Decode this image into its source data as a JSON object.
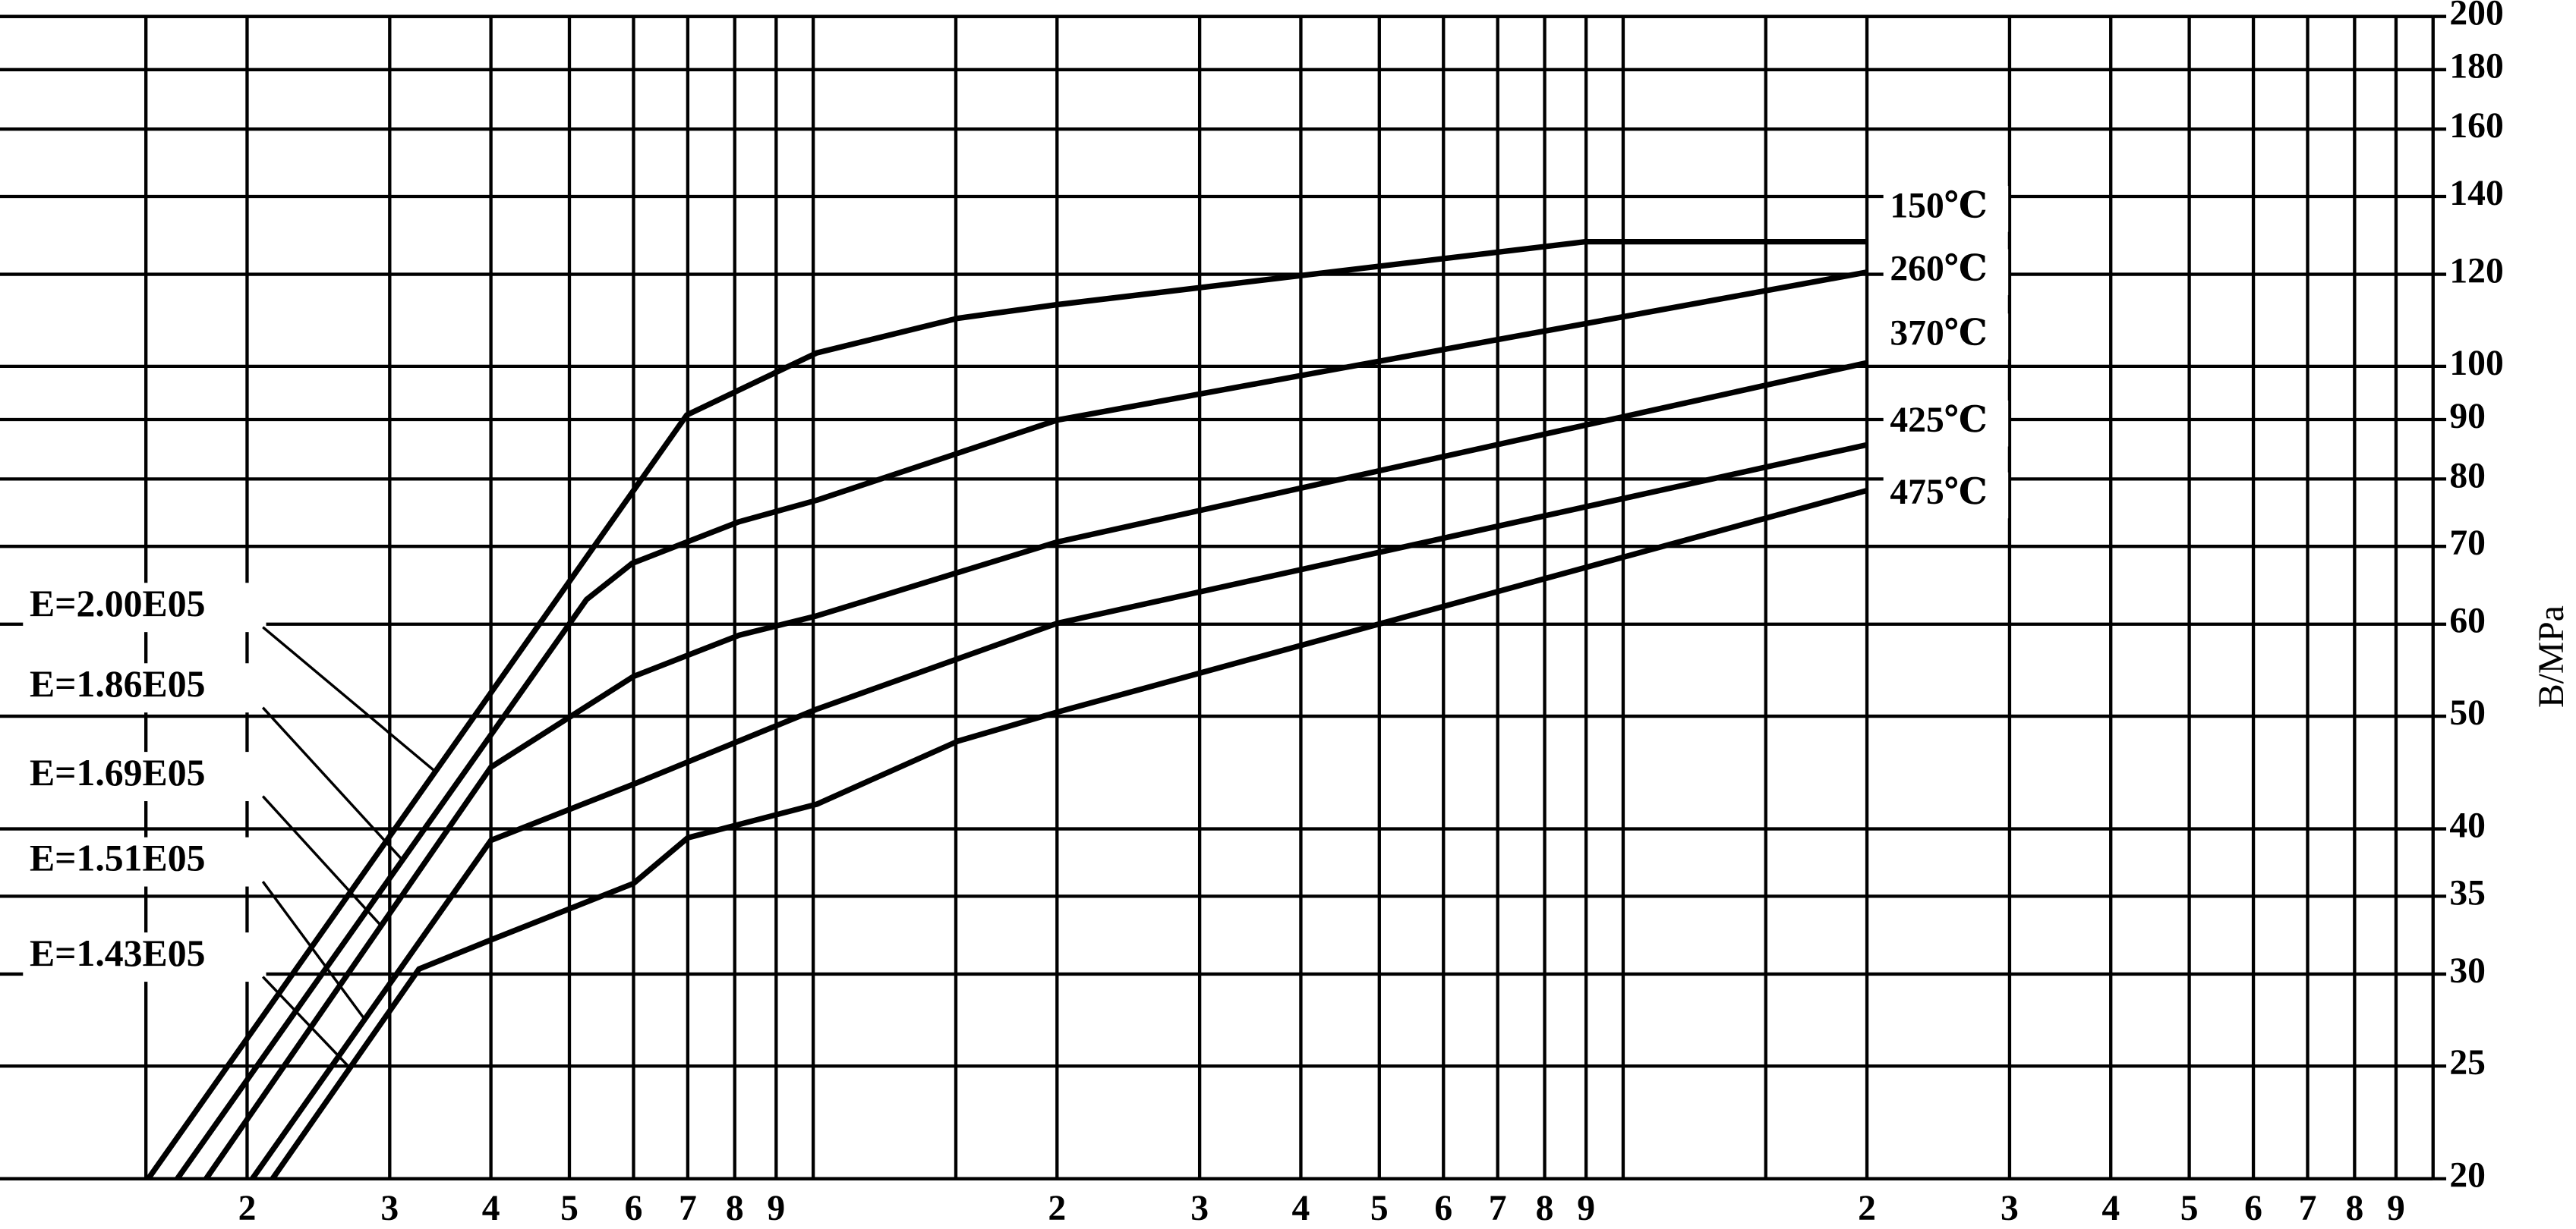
{
  "chart_data": {
    "type": "line",
    "y_label": "B/MPa",
    "xscale": "log",
    "yscale": "log",
    "xlim": [
      1,
      1000
    ],
    "ylim": [
      20,
      200
    ],
    "xticks": [
      2,
      3,
      4,
      5,
      6,
      7,
      8,
      9,
      {
        "value": 20,
        "label": "2"
      },
      {
        "value": 30,
        "label": "3"
      },
      {
        "value": 40,
        "label": "4"
      },
      {
        "value": 50,
        "label": "5"
      },
      {
        "value": 60,
        "label": "6"
      },
      {
        "value": 70,
        "label": "7"
      },
      {
        "value": 80,
        "label": "8"
      },
      {
        "value": 90,
        "label": "9"
      },
      {
        "value": 200,
        "label": "2"
      },
      {
        "value": 300,
        "label": "3"
      },
      {
        "value": 400,
        "label": "4"
      },
      {
        "value": 500,
        "label": "5"
      },
      {
        "value": 600,
        "label": "6"
      },
      {
        "value": 700,
        "label": "7"
      },
      {
        "value": 800,
        "label": "8"
      },
      {
        "value": 900,
        "label": "9"
      }
    ],
    "xgrid": [
      1.5,
      10,
      15,
      100,
      150
    ],
    "yticks": [
      20,
      25,
      30,
      35,
      40,
      50,
      60,
      70,
      80,
      90,
      100,
      120,
      140,
      160,
      180,
      200
    ],
    "grid": true,
    "series": [
      {
        "name": "150℃",
        "annotation": "E=2.00E05",
        "color": "#000000",
        "x": [
          1.51,
          6.98,
          10.1,
          15.1,
          20,
          89.8,
          200
        ],
        "values": [
          20,
          90.8,
          102.7,
          110,
          113,
          128,
          128
        ]
      },
      {
        "name": "260℃",
        "annotation": "E=1.86E05",
        "color": "#000000",
        "x": [
          1.64,
          5.25,
          5.98,
          8.1,
          10.1,
          15.1,
          20,
          200
        ],
        "values": [
          20,
          63,
          67.7,
          73.5,
          76.7,
          84.2,
          89.9,
          120.5
        ]
      },
      {
        "name": "370℃",
        "annotation": "E=1.69E05",
        "color": "#000000",
        "x": [
          1.78,
          4.0,
          6.0,
          8.1,
          10.1,
          20,
          200
        ],
        "values": [
          20,
          45.2,
          54.1,
          58.7,
          61,
          70.6,
          100.7
        ]
      },
      {
        "name": "425℃",
        "annotation": "E=1.51E05",
        "color": "#000000",
        "x": [
          2.03,
          4.0,
          6.0,
          10.1,
          20,
          200
        ],
        "values": [
          20,
          39.1,
          43.7,
          50.7,
          60.1,
          85.6
        ]
      },
      {
        "name": "475℃",
        "annotation": "E=1.43E05",
        "color": "#000000",
        "x": [
          2.15,
          3.26,
          4.0,
          6.0,
          7.0,
          10.1,
          15.1,
          20,
          200
        ],
        "values": [
          20,
          30.3,
          32.1,
          35.9,
          39.3,
          42,
          47.6,
          50.4,
          78.2
        ]
      }
    ]
  }
}
